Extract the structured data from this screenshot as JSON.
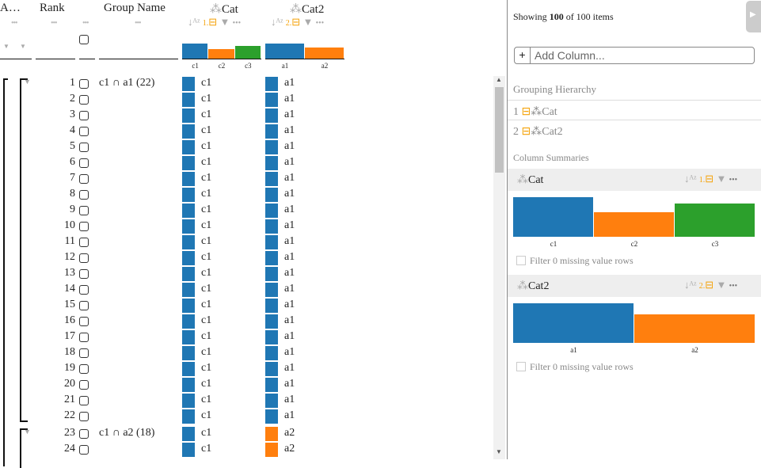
{
  "header": {
    "columns": [
      {
        "title": "A…"
      },
      {
        "title": "Rank"
      },
      {
        "title": "Group Name"
      },
      {
        "title": "Cat",
        "group_order": "1."
      },
      {
        "title": "Cat2",
        "group_order": "2."
      }
    ],
    "more_glyph": "•••",
    "cat_ticks": [
      "c1",
      "c2",
      "c3"
    ],
    "cat2_ticks": [
      "a1",
      "a2"
    ]
  },
  "colors": {
    "c1": "#1f77b4",
    "c2": "#ff7f0e",
    "c3": "#2ca02c",
    "a1": "#1f77b4",
    "a2": "#ff7f0e",
    "accent": "#f5a30a"
  },
  "cat_hist": [
    1.0,
    0.63,
    0.85
  ],
  "cat2_hist": [
    1.0,
    0.72
  ],
  "groups": [
    {
      "name": "c1 ∩ a1 (22)",
      "start_rank": 1
    },
    {
      "name": "c1 ∩ a2 (18)",
      "start_rank": 23
    }
  ],
  "rows": [
    {
      "rank": "1",
      "cat": "c1",
      "cat2": "a1"
    },
    {
      "rank": "2",
      "cat": "c1",
      "cat2": "a1"
    },
    {
      "rank": "3",
      "cat": "c1",
      "cat2": "a1"
    },
    {
      "rank": "4",
      "cat": "c1",
      "cat2": "a1"
    },
    {
      "rank": "5",
      "cat": "c1",
      "cat2": "a1"
    },
    {
      "rank": "6",
      "cat": "c1",
      "cat2": "a1"
    },
    {
      "rank": "7",
      "cat": "c1",
      "cat2": "a1"
    },
    {
      "rank": "8",
      "cat": "c1",
      "cat2": "a1"
    },
    {
      "rank": "9",
      "cat": "c1",
      "cat2": "a1"
    },
    {
      "rank": "10",
      "cat": "c1",
      "cat2": "a1"
    },
    {
      "rank": "11",
      "cat": "c1",
      "cat2": "a1"
    },
    {
      "rank": "12",
      "cat": "c1",
      "cat2": "a1"
    },
    {
      "rank": "13",
      "cat": "c1",
      "cat2": "a1"
    },
    {
      "rank": "14",
      "cat": "c1",
      "cat2": "a1"
    },
    {
      "rank": "15",
      "cat": "c1",
      "cat2": "a1"
    },
    {
      "rank": "16",
      "cat": "c1",
      "cat2": "a1"
    },
    {
      "rank": "17",
      "cat": "c1",
      "cat2": "a1"
    },
    {
      "rank": "18",
      "cat": "c1",
      "cat2": "a1"
    },
    {
      "rank": "19",
      "cat": "c1",
      "cat2": "a1"
    },
    {
      "rank": "20",
      "cat": "c1",
      "cat2": "a1"
    },
    {
      "rank": "21",
      "cat": "c1",
      "cat2": "a1"
    },
    {
      "rank": "22",
      "cat": "c1",
      "cat2": "a1"
    },
    {
      "rank": "23",
      "cat": "c1",
      "cat2": "a2"
    },
    {
      "rank": "24",
      "cat": "c1",
      "cat2": "a2"
    }
  ],
  "side": {
    "showing_prefix": "Showing ",
    "showing_count": "100",
    "showing_suffix": " of 100 items",
    "add_column_plus": "+",
    "add_column_placeholder": "Add Column...",
    "grouping_title": "Grouping Hierarchy",
    "grouping": [
      {
        "index": "1",
        "label": "Cat"
      },
      {
        "index": "2",
        "label": "Cat2"
      }
    ],
    "summaries_title": "Column Summaries",
    "summaries": [
      {
        "title": "Cat",
        "group_order": "1.",
        "ticks": [
          "c1",
          "c2",
          "c3"
        ],
        "missing": "Filter 0 missing value rows"
      },
      {
        "title": "Cat2",
        "group_order": "2.",
        "ticks": [
          "a1",
          "a2"
        ],
        "missing": "Filter 0 missing value rows"
      }
    ]
  }
}
